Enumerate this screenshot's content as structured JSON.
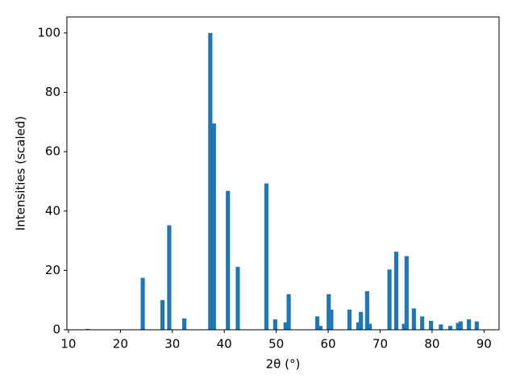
{
  "chart_data": {
    "type": "bar",
    "x": [
      13.7,
      24.3,
      28.1,
      29.4,
      32.3,
      37.3,
      38.0,
      40.7,
      42.6,
      48.1,
      49.8,
      51.8,
      52.4,
      57.9,
      58.5,
      60.1,
      60.6,
      64.1,
      65.8,
      66.3,
      67.5,
      68.0,
      71.8,
      73.1,
      74.6,
      75.1,
      76.5,
      78.1,
      79.8,
      81.7,
      83.5,
      85.0,
      85.5,
      87.1,
      88.6
    ],
    "values": [
      0.3,
      17.5,
      10,
      35.2,
      3.8,
      100,
      69.5,
      46.8,
      21.2,
      49.3,
      3.5,
      2.5,
      12,
      4.5,
      1.3,
      12,
      6.8,
      6.8,
      2.5,
      6,
      13,
      2,
      20.3,
      26.3,
      2,
      24.8,
      7.2,
      4.5,
      3,
      1.8,
      1.3,
      2.3,
      2.8,
      3.5,
      2.8
    ],
    "color": "#1f77b4",
    "xlabel": "2θ (°)",
    "ylabel": "Intensities (scaled)",
    "xlim": [
      9.7,
      92.9
    ],
    "ylim": [
      0,
      105.4
    ],
    "xticks": [
      10,
      20,
      30,
      40,
      50,
      60,
      70,
      80,
      90
    ],
    "yticks": [
      0,
      20,
      40,
      60,
      80,
      100
    ]
  }
}
